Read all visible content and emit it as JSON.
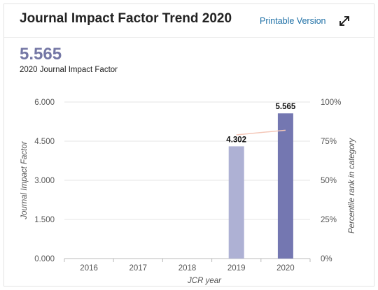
{
  "header": {
    "title": "Journal Impact Factor Trend 2020",
    "printable_link": "Printable Version",
    "expand_icon": "expand-arrows-icon"
  },
  "summary": {
    "value": "5.565",
    "label": "2020 Journal Impact Factor"
  },
  "colors": {
    "bar_2019": "#aeb1d4",
    "bar_2020": "#7477b1",
    "percentile_line": "#f4c7b8",
    "accent": "#7477a5"
  },
  "chart_data": {
    "type": "bar",
    "categories": [
      "2016",
      "2017",
      "2018",
      "2019",
      "2020"
    ],
    "values": [
      null,
      null,
      null,
      4.302,
      5.565
    ],
    "data_labels": [
      "",
      "",
      "",
      "4.302",
      "5.565"
    ],
    "percentile": [
      null,
      null,
      null,
      79,
      82
    ],
    "xlabel": "JCR year",
    "ylabel": "Journal Impact Factor",
    "y2label": "Percentile rank in category",
    "ylim": [
      0,
      6
    ],
    "y_ticks": [
      "0.000",
      "1.500",
      "3.000",
      "4.500",
      "6.000"
    ],
    "y2_ticks": [
      "0%",
      "25%",
      "50%",
      "75%",
      "100%"
    ],
    "grid": true
  }
}
